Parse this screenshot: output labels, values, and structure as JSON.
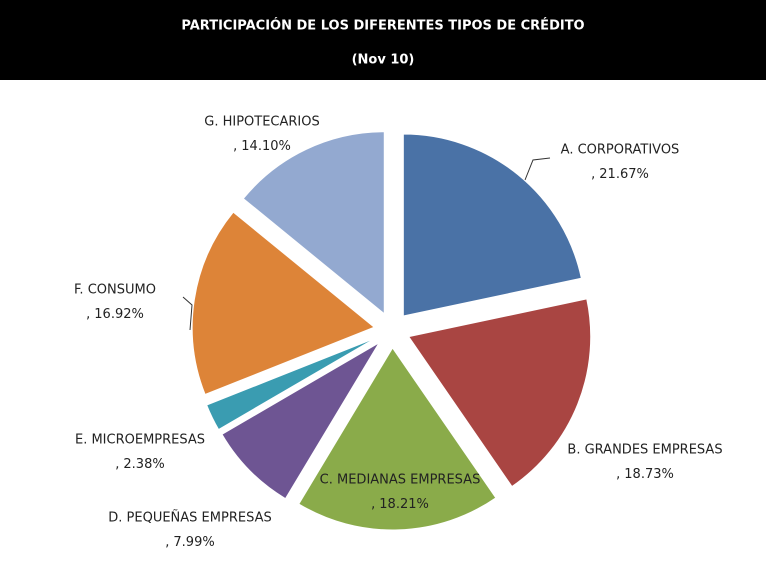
{
  "chart_data": {
    "type": "pie",
    "title": "PARTICIPACIÓN DE LOS DIFERENTES TIPOS DE CRÉDITO",
    "subtitle": "(Nov 10)",
    "categories": [
      "A. CORPORATIVOS",
      "B. GRANDES EMPRESAS",
      "C. MEDIANAS EMPRESAS",
      "D. PEQUEÑAS EMPRESAS",
      "E. MICROEMPRESAS",
      "F. CONSUMO",
      "G. HIPOTECARIOS"
    ],
    "values": [
      21.67,
      18.73,
      18.21,
      7.99,
      2.38,
      16.92,
      14.1
    ],
    "value_labels": [
      "21.67%",
      "18.73%",
      "18.21%",
      "7.99%",
      "2.38%",
      "16.92%",
      "14.10%"
    ],
    "label_separator": ",",
    "colors": [
      "#4a72a6",
      "#a94542",
      "#8aab4a",
      "#6e5593",
      "#3a9cb1",
      "#dd8438",
      "#93a9d0"
    ]
  }
}
